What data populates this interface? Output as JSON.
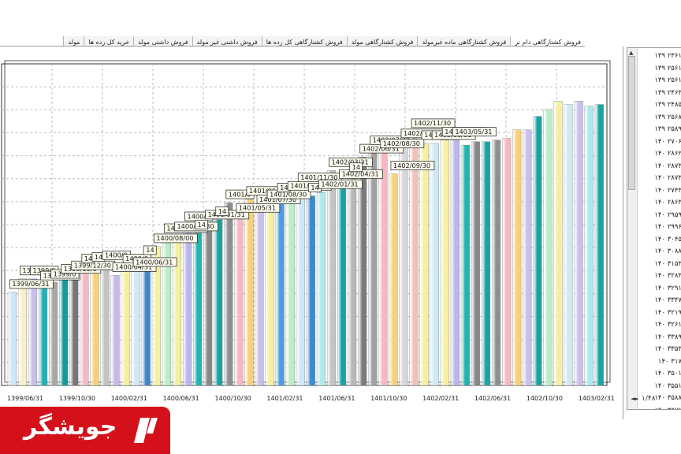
{
  "tabs": [
    {
      "label": "فروش کشتارگاهی دام نر",
      "active": true
    },
    {
      "label": "فروش کشتارگاهی ماده غیرمولد",
      "active": false
    },
    {
      "label": "فروش کشتارگاهی مولد",
      "active": false
    },
    {
      "label": "فروش کشتارگاهی کل رده ها",
      "active": false
    },
    {
      "label": "فروش داشتی غیر مولد",
      "active": false
    },
    {
      "label": "فروش داشتی مولد",
      "active": false
    },
    {
      "label": "خرید کل رده ها",
      "active": false
    },
    {
      "label": "مولد",
      "active": false
    }
  ],
  "chart_data": {
    "type": "bar",
    "x_tick_labels": [
      "1399/06/31",
      "1399/10/30",
      "1400/02/31",
      "1400/06/31",
      "1400/10/30",
      "1401/02/31",
      "1401/06/31",
      "1401/10/30",
      "1402/02/31",
      "1402/06/31",
      "1402/10/30",
      "1403/02/31"
    ],
    "grid": true,
    "values": [
      2550,
      2630,
      2630,
      2600,
      2610,
      2640,
      2660,
      2700,
      2710,
      2720,
      2650,
      2700,
      2680,
      2750,
      2820,
      2880,
      2890,
      2950,
      2900,
      2960,
      2980,
      3080,
      3000,
      3100,
      3050,
      3080,
      3120,
      3130,
      3180,
      3120,
      3140,
      3270,
      3200,
      3240,
      3350,
      3400,
      3380,
      3250,
      3440,
      3500,
      3430,
      3430,
      3450,
      3450,
      3420,
      3440,
      3440,
      3450,
      3460,
      3510,
      3510,
      3590,
      3630,
      3680,
      3660,
      3680,
      3650,
      3660
    ],
    "colors": [
      "#cce9f5",
      "#f6f0c8",
      "#c8c0ea",
      "#1fb0b8",
      "#a8a8a8",
      "#149a9a",
      "#777777",
      "#f3b8c2",
      "#f7d07a",
      "#c3c3c3",
      "#c7b8e8",
      "#f4f0a0",
      "#cce9f5",
      "#3e86cc",
      "#f4f0a0",
      "#b9eec6",
      "#f4f0a0",
      "#b8b8ea",
      "#22b4b0",
      "#888888",
      "#1aa3a0",
      "#8f8f8f",
      "#f3b8c2",
      "#f7d07a",
      "#c8c0ea",
      "#f4f0a0",
      "#4d9ee0",
      "#b9eec6",
      "#cce9f5",
      "#3a8ad2",
      "#aee8f0",
      "#c3c3c3",
      "#1aa3a0",
      "#b8b8b8",
      "#7a7a7a",
      "#a0a0a0",
      "#f3b8c2",
      "#f7d07a",
      "#d8d8d8",
      "#f3c0b8",
      "#f4f0a0",
      "#cce9f5",
      "#f4f0a0",
      "#b8b8ea",
      "#22b4b0",
      "#888888",
      "#1aa3a0",
      "#8f8f8f",
      "#f3b8c2",
      "#f7d07a",
      "#c8c0ea",
      "#1aa3a0",
      "#b9eec6",
      "#f4f0a0",
      "#cce9f5",
      "#c8c0ea",
      "#aee8f0",
      "#1aa3a0"
    ],
    "data_labels": [
      {
        "bar": 0,
        "text": "1399/06/31"
      },
      {
        "bar": 1,
        "text": "1399/0"
      },
      {
        "bar": 2,
        "text": "1399/0"
      },
      {
        "bar": 3,
        "text": "1399/08/0"
      },
      {
        "bar": 4,
        "text": "1399/0"
      },
      {
        "bar": 5,
        "text": "1399/10/0"
      },
      {
        "bar": 6,
        "text": "1399/12/30"
      },
      {
        "bar": 7,
        "text": "14"
      },
      {
        "bar": 8,
        "text": "14"
      },
      {
        "bar": 9,
        "text": "1400/0"
      },
      {
        "bar": 10,
        "text": "1400/04/31"
      },
      {
        "bar": 11,
        "text": "1400/0"
      },
      {
        "bar": 12,
        "text": "1400/06/31"
      },
      {
        "bar": 13,
        "text": "14"
      },
      {
        "bar": 14,
        "text": "1400/08/00"
      },
      {
        "bar": 15,
        "text": "1400/09/30"
      },
      {
        "bar": 16,
        "text": "1400/11/30"
      },
      {
        "bar": 17,
        "text": "1400/1"
      },
      {
        "bar": 18,
        "text": "14"
      },
      {
        "bar": 19,
        "text": "1401/01/31"
      },
      {
        "bar": 20,
        "text": "14"
      },
      {
        "bar": 21,
        "text": "1401/0"
      },
      {
        "bar": 22,
        "text": "1401/05/31"
      },
      {
        "bar": 23,
        "text": "1401/06/31"
      },
      {
        "bar": 24,
        "text": "1401/07/30"
      },
      {
        "bar": 25,
        "text": "1401/08/30"
      },
      {
        "bar": 26,
        "text": "14"
      },
      {
        "bar": 27,
        "text": "1401/10/30"
      },
      {
        "bar": 28,
        "text": "1401/11/30"
      },
      {
        "bar": 29,
        "text": "14"
      },
      {
        "bar": 30,
        "text": "1402/01/31"
      },
      {
        "bar": 31,
        "text": "1402/03/31"
      },
      {
        "bar": 32,
        "text": "1402/04/31"
      },
      {
        "bar": 33,
        "text": "14"
      },
      {
        "bar": 34,
        "text": "1402/06/31"
      },
      {
        "bar": 35,
        "text": "1402/07/30"
      },
      {
        "bar": 36,
        "text": "1402/08/30"
      },
      {
        "bar": 37,
        "text": "1402/09/30"
      },
      {
        "bar": 38,
        "text": "1402/10/30"
      },
      {
        "bar": 39,
        "text": "1402/11/30"
      },
      {
        "bar": 40,
        "text": "1403/0"
      },
      {
        "bar": 41,
        "text": "1403/03/31"
      },
      {
        "bar": 42,
        "text": "1403/04/31"
      },
      {
        "bar": 43,
        "text": "1403/05/31"
      }
    ]
  },
  "list_panel": {
    "rows": [
      "۲۳۶۱ ۱۳۹",
      "۲۵۶۱ ۱۳۹",
      "۲۵۶۱ ۱۳۹",
      "۲۴۶۳ ۱۳۹",
      "۲۴۸۵ ۱۳۹",
      "۲۵۶۸ ۱۳۹",
      "۲۵۸۹ ۱۳۹",
      "۲۷۰۶ ۱۴۰",
      "۲۸۶۲ ۱۴۰",
      "۲۸۷۳ ۱۴۰",
      "۲۸۷۳ ۱۴۰",
      "۲۷۴۳ ۱۴۰",
      "۲۸۶۳ ۱۴۰",
      "۲۹۵۹ ۱۴۰",
      "۲۹۹۶ ۱۴۰",
      "۳۰۴۵ ۱۴۰",
      "۳۰۸۸ ۱۴۰",
      "۳۱۵۳ ۱۴۰",
      "۳۲۸۳ ۱۴۰",
      "۳۲۹۱ ۱۴۰",
      "۳۳۴۷ ۱۴۰",
      "۳۲۱۹ ۱۴۰",
      "۳۲۶۱ ۱۴۰",
      "۳۳۸۹ ۱۴۰",
      "۳۳۵۳ ۱۴۰",
      "۳۱۷ ۱۴۰",
      "۳۵۰۱ ۱۴۰",
      "۳۵۵۱ ۱۴۰",
      "۳۵۸۸ ۱۴۰",
      "۳۵۷۸ ۱۴۰"
    ],
    "pager_label": "۱/۴۸"
  },
  "logo": {
    "text": "جویشگر"
  }
}
